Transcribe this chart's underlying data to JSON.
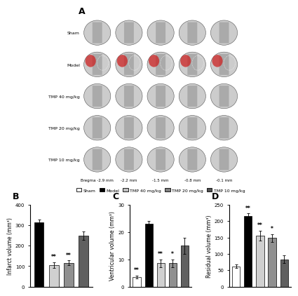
{
  "panel_A_label": "A",
  "panel_B_label": "B",
  "panel_C_label": "C",
  "panel_D_label": "D",
  "legend_labels": [
    "Sham",
    "Model",
    "TMP 40 mg/kg",
    "TMP 20 mg/kg",
    "TMP 10 mg/kg"
  ],
  "legend_colors": [
    "#ffffff",
    "#000000",
    "#c0c0c0",
    "#808080",
    "#505050"
  ],
  "legend_edgecolors": [
    "#000000",
    "#000000",
    "#000000",
    "#000000",
    "#000000"
  ],
  "bar_B_ylabel": "Infarct volume (mm³)",
  "bar_B_ylim": [
    0,
    400
  ],
  "bar_B_yticks": [
    0,
    100,
    200,
    300,
    400
  ],
  "bar_B_groups": [
    "Model",
    "TMP 40 mg/kg",
    "TMP 20 mg/kg",
    "TMP 10 mg/kg"
  ],
  "bar_B_values": [
    315,
    105,
    115,
    248
  ],
  "bar_B_errors": [
    12,
    15,
    12,
    20
  ],
  "bar_B_colors": [
    "#000000",
    "#d0d0d0",
    "#909090",
    "#606060"
  ],
  "bar_B_sig": [
    "",
    "**",
    "**",
    ""
  ],
  "bar_C_ylabel": "Ventricular volume (mm³)",
  "bar_C_ylim": [
    0,
    30
  ],
  "bar_C_yticks": [
    0,
    10,
    20,
    30
  ],
  "bar_C_groups": [
    "Sham",
    "Model",
    "TMP 40 mg/kg",
    "TMP 20 mg/kg",
    "TMP 10 mg/kg"
  ],
  "bar_C_values": [
    3.5,
    23,
    8.5,
    8.5,
    15
  ],
  "bar_C_errors": [
    0.5,
    1.0,
    1.5,
    1.5,
    3.0
  ],
  "bar_C_colors": [
    "#ffffff",
    "#000000",
    "#d0d0d0",
    "#909090",
    "#606060"
  ],
  "bar_C_sig": [
    "**",
    "",
    "**",
    "*",
    ""
  ],
  "bar_D_ylabel": "Residual volume (mm³)",
  "bar_D_ylim": [
    0,
    250
  ],
  "bar_D_yticks": [
    0,
    50,
    100,
    150,
    200,
    250
  ],
  "bar_D_groups": [
    "Sham",
    "Model",
    "TMP 40 mg/kg",
    "TMP 20 mg/kg",
    "TMP 10 mg/kg"
  ],
  "bar_D_values": [
    62,
    215,
    155,
    148,
    83
  ],
  "bar_D_errors": [
    5,
    8,
    15,
    12,
    12
  ],
  "bar_D_colors": [
    "#ffffff",
    "#000000",
    "#d0d0d0",
    "#909090",
    "#606060"
  ],
  "bar_D_sig": [
    "",
    "**",
    "**",
    "*",
    ""
  ],
  "row_labels": [
    "Sham",
    "Model",
    "TMP 40 mg/kg",
    "TMP 20 mg/kg",
    "TMP 10 mg/kg"
  ],
  "col_labels": [
    "Bregma -2.9 mm",
    "-2.2 mm",
    "-1.5 mm",
    "-0.8 mm",
    "-0.1 mm"
  ],
  "figure_bgcolor": "#ffffff",
  "axes_linewidth": 0.8,
  "bar_width": 0.65,
  "font_size": 5.5,
  "tick_font_size": 5
}
